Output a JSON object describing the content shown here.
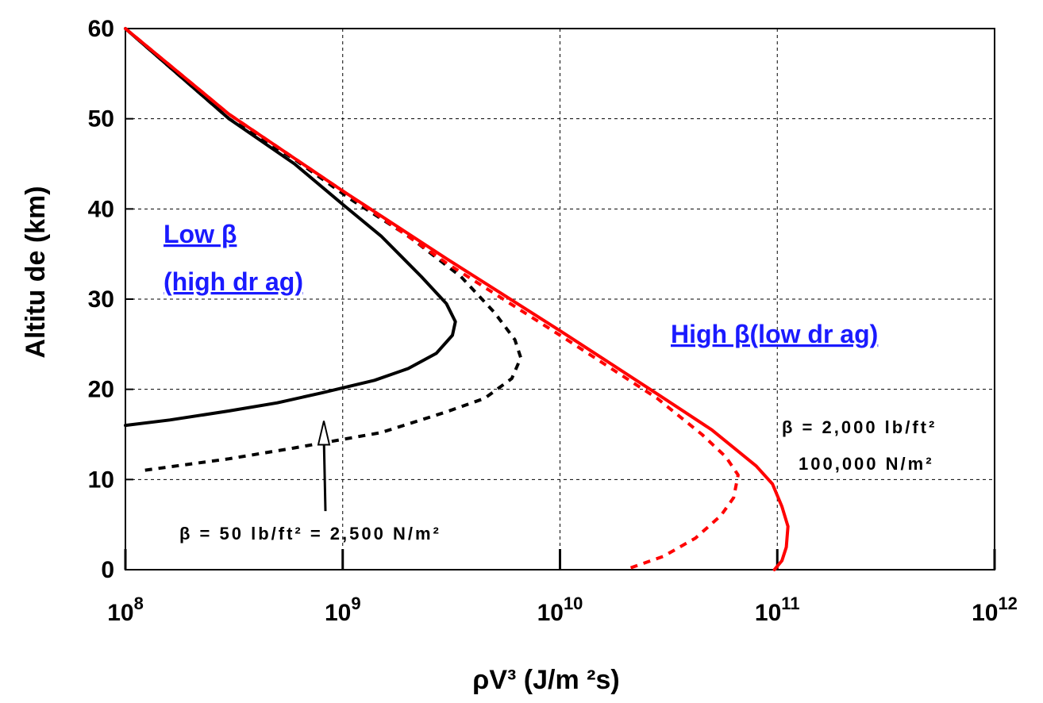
{
  "chart_data": {
    "type": "line",
    "xlabel": "ρV³ (J/m ²s)",
    "ylabel": "Altitu de (km)",
    "xscale": "log",
    "xlim": [
      100000000.0,
      1000000000000.0
    ],
    "ylim": [
      0,
      60
    ],
    "x_ticks": [
      {
        "value": 100000000.0,
        "base": "10",
        "exp": "8"
      },
      {
        "value": 1000000000.0,
        "base": "10",
        "exp": "9"
      },
      {
        "value": 10000000000.0,
        "base": "10",
        "exp": "10"
      },
      {
        "value": 100000000000.0,
        "base": "10",
        "exp": "11"
      },
      {
        "value": 1000000000000.0,
        "base": "10",
        "exp": "12"
      }
    ],
    "y_ticks": [
      0,
      10,
      20,
      30,
      40,
      50,
      60
    ],
    "grid": true,
    "series": [
      {
        "color": "#000000",
        "style": "solid",
        "points": [
          [
            100000000.0,
            60
          ],
          [
            300000000.0,
            50
          ],
          [
            600000000.0,
            45
          ],
          [
            1000000000.0,
            40.5
          ],
          [
            1500000000.0,
            37
          ],
          [
            2300000000.0,
            32.5
          ],
          [
            3000000000.0,
            29.5
          ],
          [
            3300000000.0,
            27.5
          ],
          [
            3200000000.0,
            26
          ],
          [
            2700000000.0,
            24
          ],
          [
            2000000000.0,
            22.3
          ],
          [
            1400000000.0,
            21
          ],
          [
            800000000.0,
            19.6
          ],
          [
            500000000.0,
            18.5
          ],
          [
            300000000.0,
            17.6
          ],
          [
            160000000.0,
            16.6
          ],
          [
            100000000.0,
            16
          ]
        ]
      },
      {
        "color": "#000000",
        "style": "dashed",
        "points": [
          [
            100000000.0,
            60
          ],
          [
            300000000.0,
            50
          ],
          [
            600000000.0,
            45.5
          ],
          [
            1100000000.0,
            41
          ],
          [
            2000000000.0,
            37
          ],
          [
            3500000000.0,
            32.5
          ],
          [
            5000000000.0,
            28.5
          ],
          [
            6200000000.0,
            25.5
          ],
          [
            6600000000.0,
            23.5
          ],
          [
            6000000000.0,
            21.2
          ],
          [
            4500000000.0,
            19
          ],
          [
            3000000000.0,
            17.5
          ],
          [
            1500000000.0,
            15.2
          ],
          [
            600000000.0,
            13.5
          ],
          [
            300000000.0,
            12.3
          ],
          [
            120000000.0,
            11
          ]
        ]
      },
      {
        "color": "#ff0000",
        "style": "solid",
        "points": [
          [
            100000000.0,
            60
          ],
          [
            300000000.0,
            50.5
          ],
          [
            1000000000.0,
            42
          ],
          [
            3000000000.0,
            34.5
          ],
          [
            10000000000.0,
            26.5
          ],
          [
            28000000000.0,
            19.5
          ],
          [
            50000000000.0,
            15.5
          ],
          [
            80000000000.0,
            11.5
          ],
          [
            95000000000.0,
            9.5
          ],
          [
            105000000000.0,
            7
          ],
          [
            112000000000.0,
            4.8
          ],
          [
            110000000000.0,
            2.5
          ],
          [
            105000000000.0,
            1
          ],
          [
            97000000000.0,
            0
          ]
        ]
      },
      {
        "color": "#ff0000",
        "style": "dashed",
        "points": [
          [
            100000000.0,
            60
          ],
          [
            300000000.0,
            50.5
          ],
          [
            1000000000.0,
            42
          ],
          [
            3000000000.0,
            34
          ],
          [
            10000000000.0,
            26
          ],
          [
            28000000000.0,
            19
          ],
          [
            45000000000.0,
            15
          ],
          [
            58000000000.0,
            12.5
          ],
          [
            66000000000.0,
            10.5
          ],
          [
            63000000000.0,
            8
          ],
          [
            55000000000.0,
            6
          ],
          [
            42000000000.0,
            3.5
          ],
          [
            30000000000.0,
            1.5
          ],
          [
            20000000000.0,
            0
          ]
        ]
      }
    ],
    "annotations": {
      "low_beta_line1": "Low β",
      "low_beta_line2": "(high dr ag)",
      "high_beta": "High β(low dr ag)",
      "beta_low_label": "β = 50 lb/ft² = 2,500 N/m²",
      "beta_high_line1": "β = 2,000 lb/ft²",
      "beta_high_line2": "100,000 N/m²"
    }
  }
}
